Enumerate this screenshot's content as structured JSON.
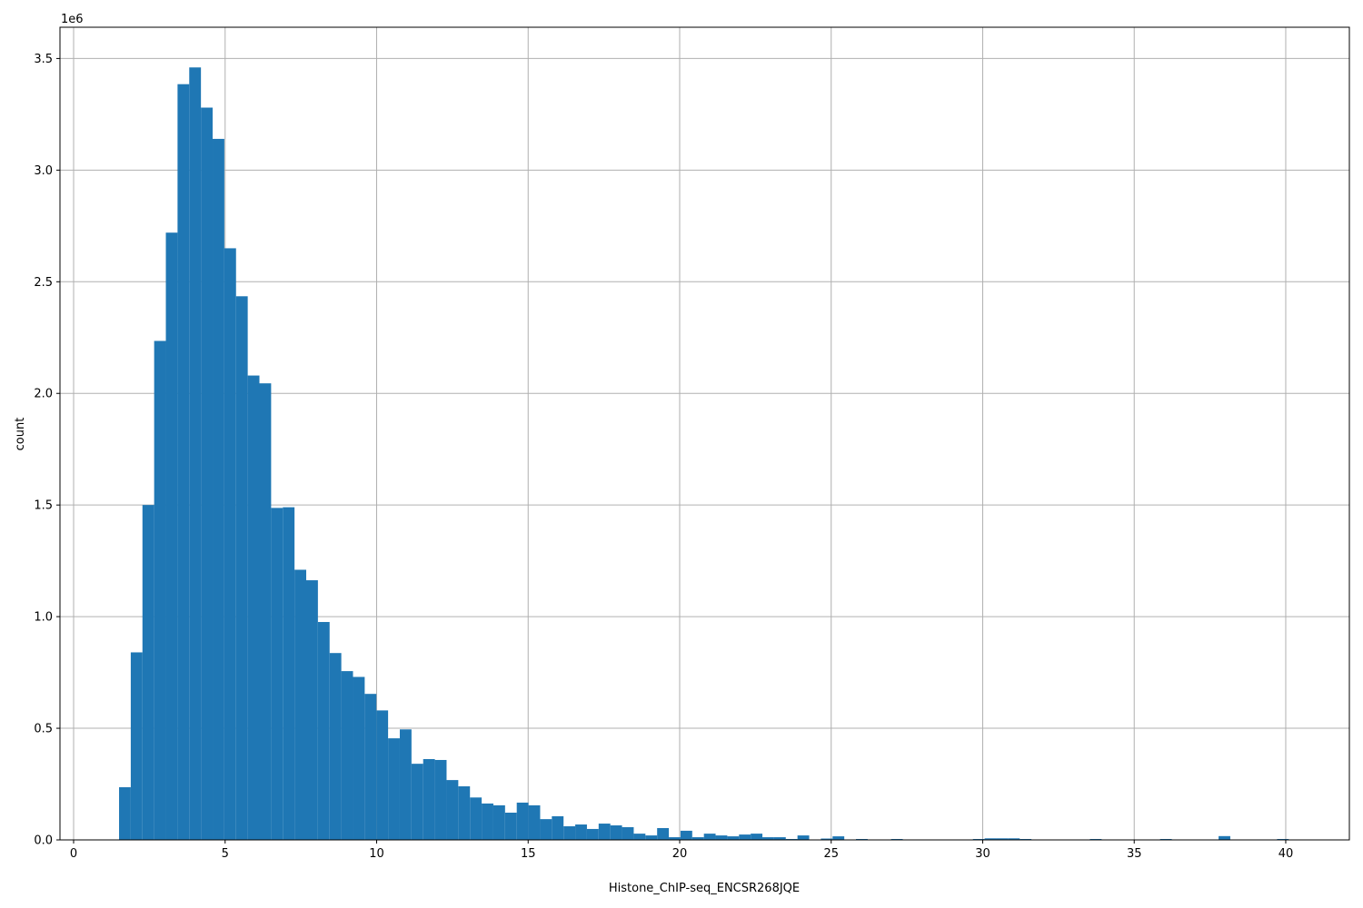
{
  "chart_data": {
    "type": "bar",
    "subtype": "histogram",
    "xlabel": "Histone_ChIP-seq_ENCSR268JQE",
    "ylabel": "count",
    "y_offset_label": "1e6",
    "xlim": [
      -0.45,
      42.1
    ],
    "ylim": [
      0,
      3640000
    ],
    "grid": true,
    "bar_color": "#1f77b4",
    "x_ticks": [
      0,
      5,
      10,
      15,
      20,
      25,
      30,
      35,
      40
    ],
    "x_tick_labels": [
      "0",
      "5",
      "10",
      "15",
      "20",
      "25",
      "30",
      "35",
      "40"
    ],
    "y_ticks": [
      0,
      500000,
      1000000,
      1500000,
      2000000,
      2500000,
      3000000,
      3500000
    ],
    "y_tick_labels": [
      "0.0",
      "0.5",
      "1.0",
      "1.5",
      "2.0",
      "2.5",
      "3.0",
      "3.5"
    ],
    "bin_start": 1.5,
    "bin_width": 0.386,
    "values": [
      236000,
      840000,
      1500000,
      2235000,
      2720000,
      3385000,
      3460000,
      3280000,
      3140000,
      2650000,
      2435000,
      2080000,
      2045000,
      1487000,
      1490000,
      1210000,
      1163000,
      976000,
      837000,
      756000,
      730000,
      654000,
      580000,
      455000,
      495000,
      341000,
      362000,
      358000,
      268000,
      240000,
      190000,
      163000,
      155000,
      122000,
      167000,
      155000,
      93000,
      106000,
      61000,
      69000,
      49000,
      73000,
      65000,
      57000,
      28000,
      20000,
      53000,
      12000,
      41000,
      12000,
      28000,
      20000,
      16000,
      24000,
      28000,
      12000,
      12000,
      4000,
      20000,
      0,
      6000,
      16000,
      0,
      4000,
      0,
      0,
      4000,
      0,
      0,
      0,
      0,
      0,
      0,
      4000,
      7000,
      7000,
      7000,
      4000,
      0,
      0,
      0,
      0,
      0,
      4000,
      0,
      0,
      0,
      0,
      0,
      4000,
      0,
      0,
      0,
      0,
      17000,
      0,
      0,
      0,
      0,
      4000
    ]
  }
}
